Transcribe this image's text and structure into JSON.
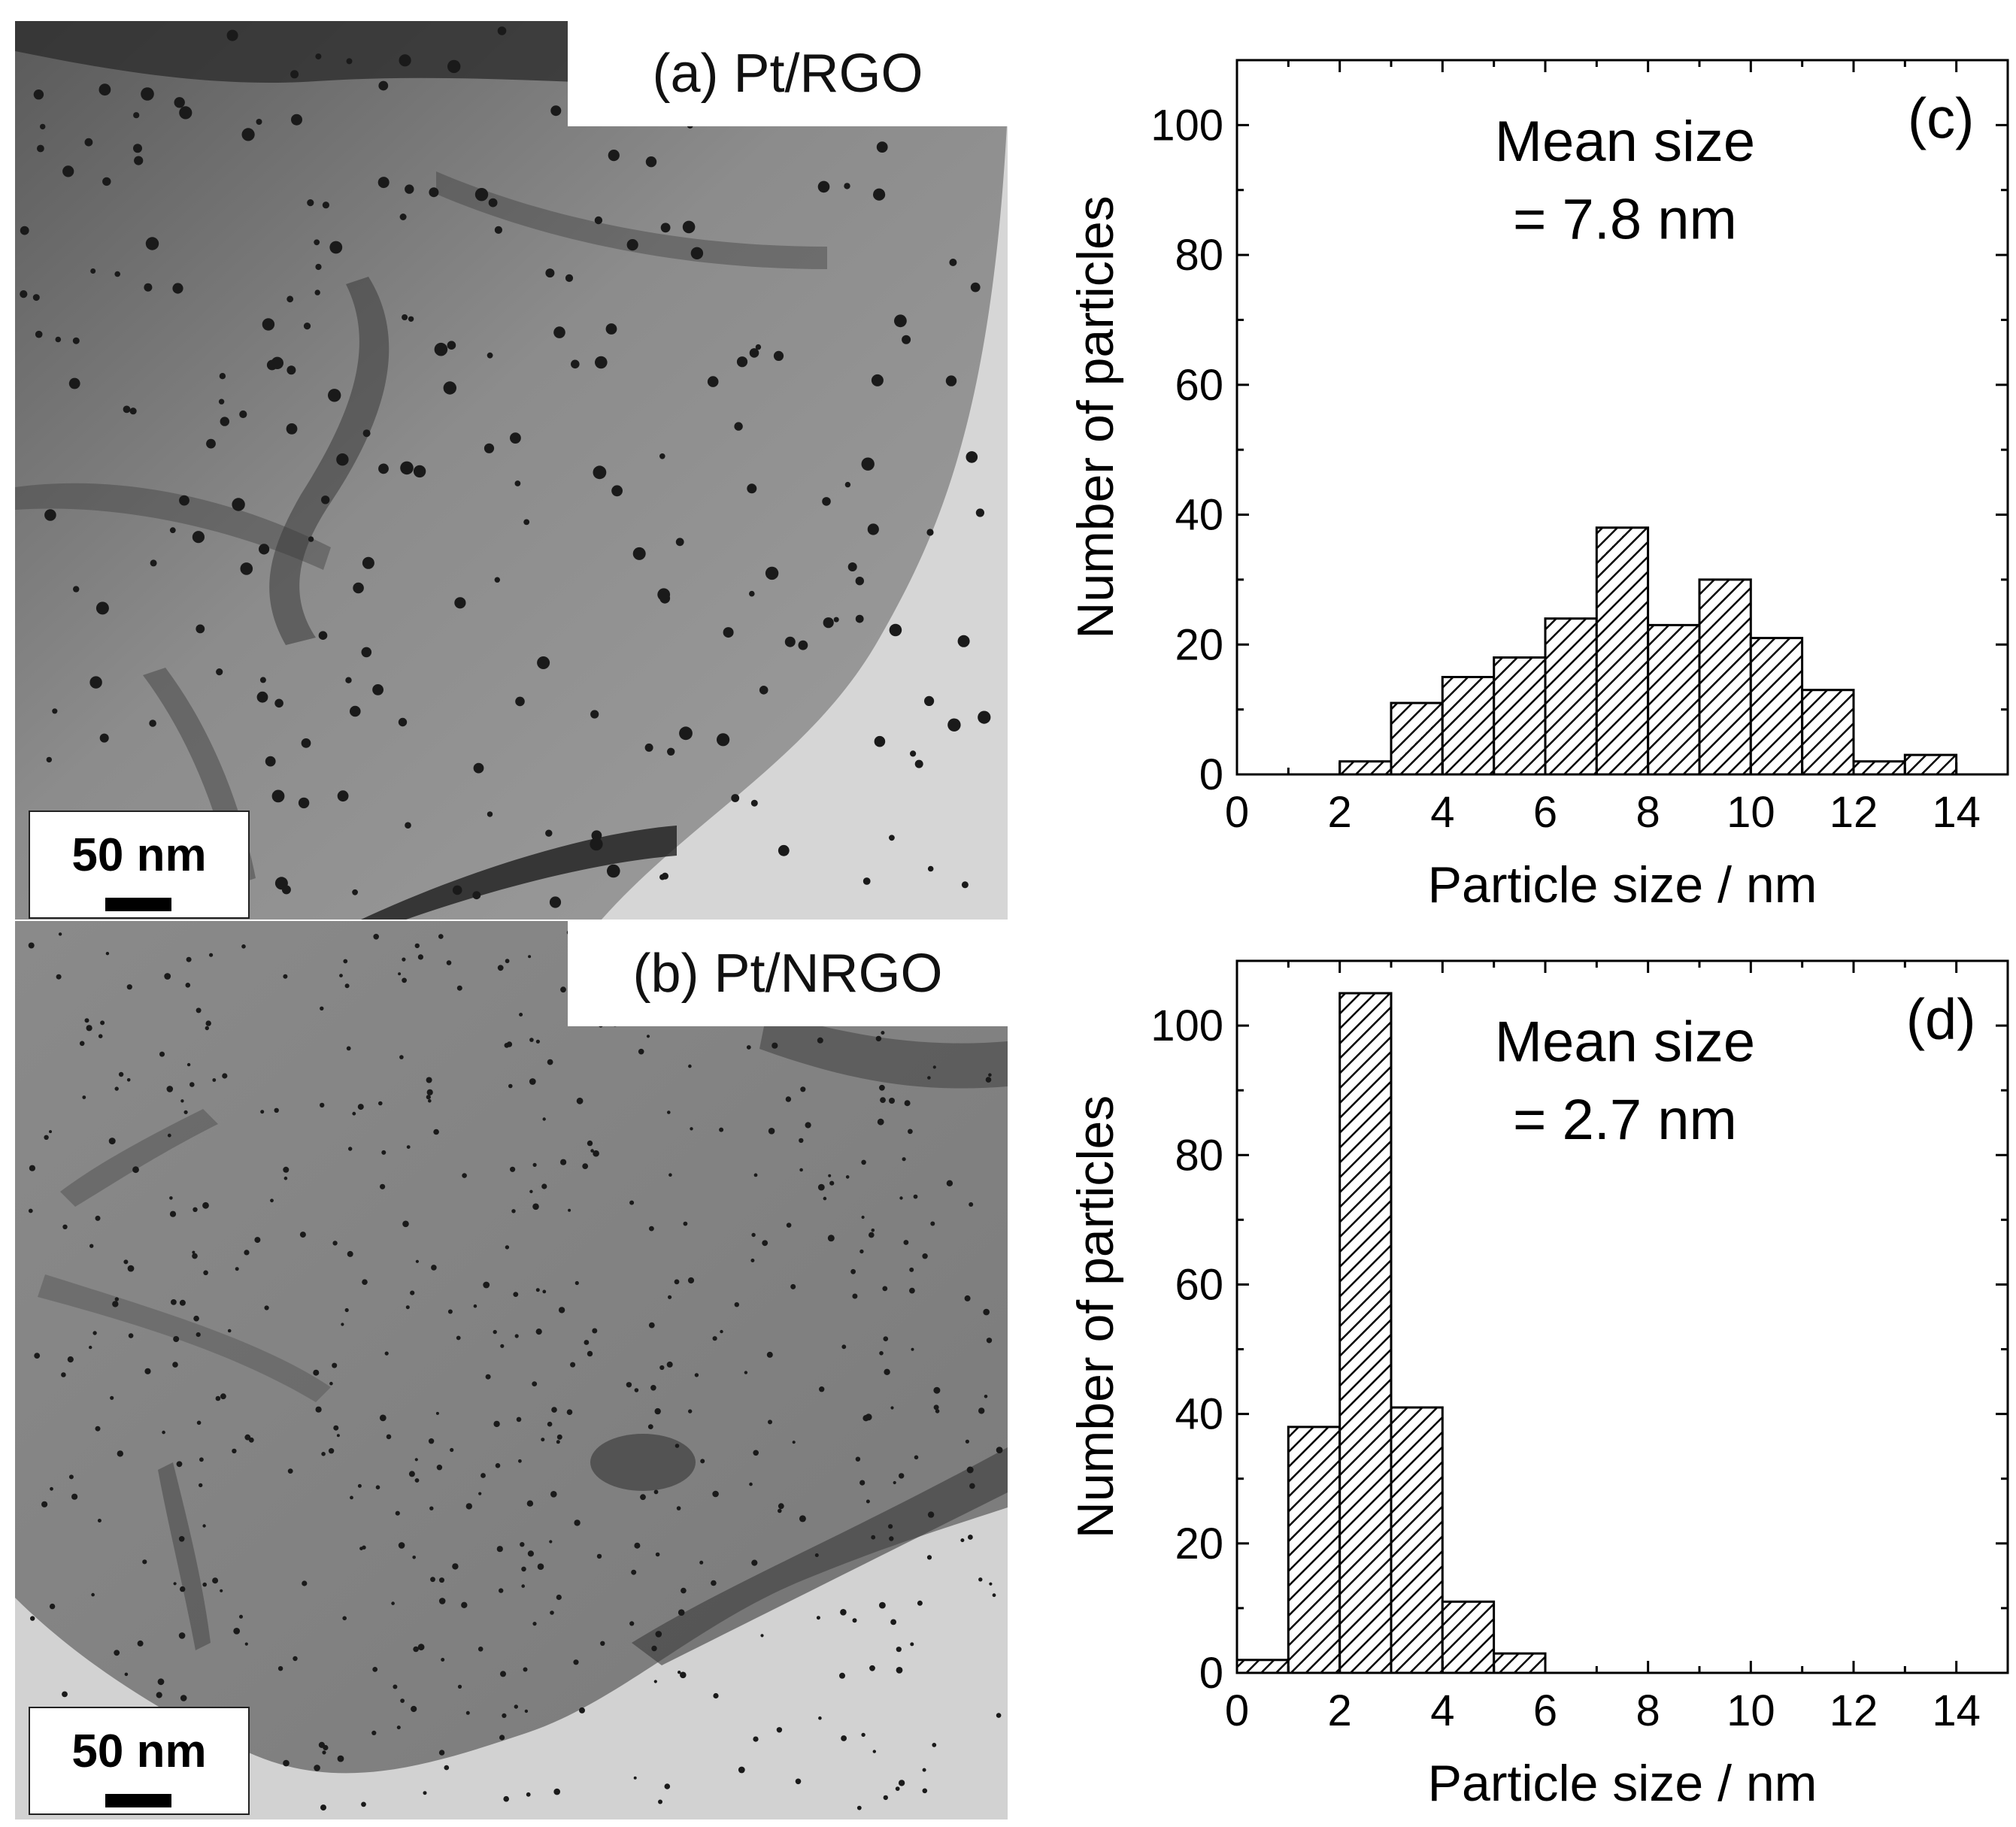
{
  "tem_panels": [
    {
      "label": "(a) Pt/RGO",
      "scale_bar": "50 nm"
    },
    {
      "label": "(b) Pt/NRGO",
      "scale_bar": "50 nm"
    }
  ],
  "colors": {
    "axis": "#000000",
    "hatch": "#000000",
    "bar_fill": "#ffffff",
    "tem_background": "#9a9a9a",
    "tem_dark": "#1a1a1a"
  },
  "chart_data": [
    {
      "type": "bar",
      "panel_label": "(c)",
      "annotation_line1": "Mean size",
      "annotation_line2": "= 7.8 nm",
      "xlabel": "Particle size  / nm",
      "ylabel": "Number of particles",
      "xlim": [
        0,
        15
      ],
      "ylim": [
        0,
        110
      ],
      "xticks": [
        0,
        2,
        4,
        6,
        8,
        10,
        12,
        14
      ],
      "yticks": [
        0,
        20,
        40,
        60,
        80,
        100
      ],
      "bins": [
        [
          2,
          3
        ],
        [
          3,
          4
        ],
        [
          4,
          5
        ],
        [
          5,
          6
        ],
        [
          6,
          7
        ],
        [
          7,
          8
        ],
        [
          8,
          9
        ],
        [
          9,
          10
        ],
        [
          10,
          11
        ],
        [
          11,
          12
        ],
        [
          12,
          13
        ],
        [
          13,
          14
        ]
      ],
      "values": [
        2,
        11,
        15,
        18,
        24,
        38,
        23,
        30,
        21,
        13,
        2,
        3
      ]
    },
    {
      "type": "bar",
      "panel_label": "(d)",
      "annotation_line1": "Mean size",
      "annotation_line2": "= 2.7 nm",
      "xlabel": "Particle size  / nm",
      "ylabel": "Number of particles",
      "xlim": [
        0,
        15
      ],
      "ylim": [
        0,
        110
      ],
      "xticks": [
        0,
        2,
        4,
        6,
        8,
        10,
        12,
        14
      ],
      "yticks": [
        0,
        20,
        40,
        60,
        80,
        100
      ],
      "bins": [
        [
          0,
          1
        ],
        [
          1,
          2
        ],
        [
          2,
          3
        ],
        [
          3,
          4
        ],
        [
          4,
          5
        ],
        [
          5,
          6
        ]
      ],
      "values": [
        2,
        38,
        105,
        41,
        11,
        3
      ]
    }
  ]
}
